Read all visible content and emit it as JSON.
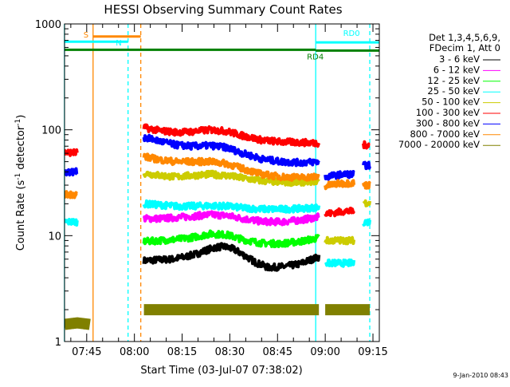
{
  "chart_data": {
    "type": "line",
    "title": "HESSI Observing Summary Count Rates",
    "xlabel": "Start Time (03-Jul-07 07:38:02)",
    "ylabel_main": "Count Rate (s",
    "ylabel_sup1": "-1",
    "ylabel_mid": " detector",
    "ylabel_sup2": "-1",
    "ylabel_end": ")",
    "ylabel": "Count Rate (s-1 detector-1)",
    "y_scale": "log",
    "ylim": [
      1,
      1000
    ],
    "xlim": [
      "07:38:02",
      "09:17:00"
    ],
    "grid": false,
    "legend_position": "right",
    "yticks": [
      {
        "value": 1,
        "label": "1"
      },
      {
        "value": 10,
        "label": "10"
      },
      {
        "value": 100,
        "label": "100"
      },
      {
        "value": 1000,
        "label": "1000"
      }
    ],
    "xticks": [
      {
        "value": "07:45",
        "label": "07:45"
      },
      {
        "value": "08:00",
        "label": "08:00"
      },
      {
        "value": "08:15",
        "label": "08:15"
      },
      {
        "value": "08:30",
        "label": "08:30"
      },
      {
        "value": "08:45",
        "label": "08:45"
      },
      {
        "value": "09:00",
        "label": "09:00"
      },
      {
        "value": "09:15",
        "label": "09:15"
      }
    ],
    "legend_header": [
      "Det 1,3,4,5,6,9,",
      "FDecim 1, Att 0"
    ],
    "series": [
      {
        "name": "3 - 6 keV",
        "color": "#000000",
        "segments": [
          [
            [
              "08:03",
              5.8
            ],
            [
              "08:07",
              5.9
            ],
            [
              "08:12",
              6.0
            ],
            [
              "08:16",
              6.3
            ],
            [
              "08:20",
              6.8
            ],
            [
              "08:25",
              7.7
            ],
            [
              "08:28",
              7.9
            ],
            [
              "08:31",
              7.5
            ],
            [
              "08:35",
              6.4
            ],
            [
              "08:38",
              5.6
            ],
            [
              "08:42",
              5.0
            ],
            [
              "08:47",
              5.1
            ],
            [
              "08:52",
              5.4
            ],
            [
              "08:56",
              6.0
            ],
            [
              "08:58",
              6.3
            ]
          ]
        ]
      },
      {
        "name": "6 - 12 keV",
        "color": "#ff00ff",
        "segments": [
          [
            [
              "08:03",
              14.5
            ],
            [
              "08:08",
              14.5
            ],
            [
              "08:13",
              14.8
            ],
            [
              "08:18",
              15.2
            ],
            [
              "08:24",
              15.8
            ],
            [
              "08:29",
              15.5
            ],
            [
              "08:34",
              14.5
            ],
            [
              "08:40",
              13.6
            ],
            [
              "08:46",
              13.5
            ],
            [
              "08:52",
              14.0
            ],
            [
              "08:58",
              15.0
            ]
          ]
        ]
      },
      {
        "name": "12 - 25 keV",
        "color": "#00ff00",
        "segments": [
          [
            [
              "08:03",
              8.8
            ],
            [
              "08:08",
              9.0
            ],
            [
              "08:13",
              9.2
            ],
            [
              "08:18",
              9.6
            ],
            [
              "08:24",
              10.4
            ],
            [
              "08:29",
              10.2
            ],
            [
              "08:34",
              9.2
            ],
            [
              "08:40",
              8.5
            ],
            [
              "08:46",
              8.4
            ],
            [
              "08:52",
              8.8
            ],
            [
              "08:58",
              9.5
            ]
          ]
        ]
      },
      {
        "name": "25 - 50 keV",
        "color": "#00ffff",
        "segments": [
          [
            [
              "07:38",
              13.5
            ],
            [
              "07:42",
              13.5
            ]
          ],
          [
            [
              "08:03",
              20.0
            ],
            [
              "08:08",
              19.5
            ],
            [
              "08:13",
              19.0
            ],
            [
              "08:18",
              19.0
            ],
            [
              "08:24",
              19.2
            ],
            [
              "08:29",
              19.0
            ],
            [
              "08:34",
              18.3
            ],
            [
              "08:40",
              17.8
            ],
            [
              "08:46",
              17.8
            ],
            [
              "08:52",
              18.0
            ],
            [
              "08:58",
              18.5
            ]
          ],
          [
            [
              "09:00",
              5.5
            ],
            [
              "09:03",
              5.5
            ],
            [
              "09:06",
              5.5
            ],
            [
              "09:09",
              5.5
            ]
          ],
          [
            [
              "09:12",
              13.5
            ],
            [
              "09:14",
              13.5
            ]
          ]
        ]
      },
      {
        "name": "50 - 100 keV",
        "color": "#cccc00",
        "segments": [
          [
            [
              "08:03",
              39.0
            ],
            [
              "08:08",
              37.0
            ],
            [
              "08:13",
              36.0
            ],
            [
              "08:18",
              37.0
            ],
            [
              "08:24",
              38.0
            ],
            [
              "08:29",
              37.0
            ],
            [
              "08:34",
              35.0
            ],
            [
              "08:40",
              33.0
            ],
            [
              "08:46",
              32.0
            ],
            [
              "08:52",
              32.0
            ],
            [
              "08:58",
              33.0
            ]
          ],
          [
            [
              "09:00",
              9.0
            ],
            [
              "09:03",
              9.0
            ],
            [
              "09:06",
              9.0
            ],
            [
              "09:09",
              9.0
            ]
          ],
          [
            [
              "09:12",
              20.5
            ],
            [
              "09:14",
              20.5
            ]
          ]
        ]
      },
      {
        "name": "100 - 300 keV",
        "color": "#ff0000",
        "segments": [
          [
            [
              "07:38",
              61.0
            ],
            [
              "07:42",
              61.0
            ]
          ],
          [
            [
              "08:03",
              105.0
            ],
            [
              "08:08",
              98.0
            ],
            [
              "08:13",
              95.0
            ],
            [
              "08:18",
              96.0
            ],
            [
              "08:24",
              100.0
            ],
            [
              "08:29",
              97.0
            ],
            [
              "08:34",
              88.0
            ],
            [
              "08:40",
              80.0
            ],
            [
              "08:46",
              77.0
            ],
            [
              "08:52",
              76.0
            ],
            [
              "08:58",
              75.0
            ]
          ],
          [
            [
              "09:00",
              16.0
            ],
            [
              "09:03",
              16.5
            ],
            [
              "09:06",
              17.0
            ],
            [
              "09:09",
              17.0
            ]
          ],
          [
            [
              "09:12",
              72.0
            ],
            [
              "09:14",
              72.0
            ]
          ]
        ]
      },
      {
        "name": "300 - 800 keV",
        "color": "#0000ff",
        "segments": [
          [
            [
              "07:38",
              40.0
            ],
            [
              "07:42",
              40.0
            ]
          ],
          [
            [
              "08:03",
              85.0
            ],
            [
              "08:08",
              78.0
            ],
            [
              "08:13",
              72.0
            ],
            [
              "08:18",
              70.0
            ],
            [
              "08:24",
              71.0
            ],
            [
              "08:29",
              68.0
            ],
            [
              "08:34",
              60.0
            ],
            [
              "08:40",
              53.0
            ],
            [
              "08:46",
              50.0
            ],
            [
              "08:52",
              49.0
            ],
            [
              "08:58",
              50.0
            ]
          ],
          [
            [
              "09:00",
              36.0
            ],
            [
              "09:03",
              37.0
            ],
            [
              "09:06",
              38.0
            ],
            [
              "09:09",
              38.0
            ]
          ],
          [
            [
              "09:12",
              46.0
            ],
            [
              "09:14",
              46.0
            ]
          ]
        ]
      },
      {
        "name": "800 - 7000 keV",
        "color": "#ff8800",
        "segments": [
          [
            [
              "07:38",
              24.5
            ],
            [
              "07:42",
              24.5
            ]
          ],
          [
            [
              "08:03",
              56.0
            ],
            [
              "08:08",
              52.0
            ],
            [
              "08:13",
              50.0
            ],
            [
              "08:18",
              50.0
            ],
            [
              "08:24",
              50.0
            ],
            [
              "08:29",
              48.0
            ],
            [
              "08:34",
              43.0
            ],
            [
              "08:40",
              38.0
            ],
            [
              "08:46",
              36.0
            ],
            [
              "08:52",
              35.5
            ],
            [
              "08:58",
              36.0
            ]
          ],
          [
            [
              "09:00",
              29.5
            ],
            [
              "09:04",
              31.0
            ],
            [
              "09:09",
              31.5
            ]
          ],
          [
            [
              "09:12",
              30.0
            ],
            [
              "09:14",
              30.0
            ]
          ]
        ]
      },
      {
        "name": "7000 - 20000 keV",
        "color": "#808000",
        "segments": [
          [
            [
              "07:38",
              1.45
            ],
            [
              "07:42",
              1.5
            ],
            [
              "07:46",
              1.45
            ]
          ],
          [
            [
              "08:03",
              2.0
            ],
            [
              "08:10",
              2.0
            ],
            [
              "08:20",
              2.0
            ],
            [
              "08:30",
              2.0
            ],
            [
              "08:40",
              2.0
            ],
            [
              "08:50",
              2.0
            ],
            [
              "08:58",
              2.0
            ]
          ],
          [
            [
              "09:00",
              2.0
            ],
            [
              "09:05",
              2.0
            ],
            [
              "09:14",
              2.0
            ]
          ]
        ]
      }
    ],
    "vertical_lines": [
      {
        "time": "07:38",
        "color": "#00ffff",
        "style": "solid"
      },
      {
        "time": "07:47",
        "color": "#ff8800",
        "style": "solid"
      },
      {
        "time": "07:58",
        "color": "#00ffff",
        "style": "dashed"
      },
      {
        "time": "08:02",
        "color": "#ff8800",
        "style": "dashed"
      },
      {
        "time": "08:57",
        "color": "#00ffff",
        "style": "solid"
      },
      {
        "time": "09:14",
        "color": "#00ffff",
        "style": "dashed"
      }
    ],
    "bars": [
      {
        "label": "S",
        "color": "#ff8800",
        "start": "07:47",
        "end": "08:02",
        "y": 760,
        "label_side": "left"
      },
      {
        "label": "N",
        "color": "#00ffff",
        "start": "07:38",
        "end": "07:58",
        "y": 680,
        "label_side": "right"
      },
      {
        "label": "",
        "color": "#008000",
        "start": "07:38",
        "end": "08:57",
        "y": 570,
        "label_side": "none"
      },
      {
        "label": "RD0",
        "color": "#00ffff",
        "start": "08:57",
        "end": "09:17",
        "y": 670,
        "label_side": "above-mid"
      },
      {
        "label": "RD4",
        "color": "#008000",
        "start": "08:57",
        "end": "09:17",
        "y": 560,
        "label_side": "below-left"
      }
    ],
    "footer_timestamp": "9-Jan-2010 08:43"
  }
}
